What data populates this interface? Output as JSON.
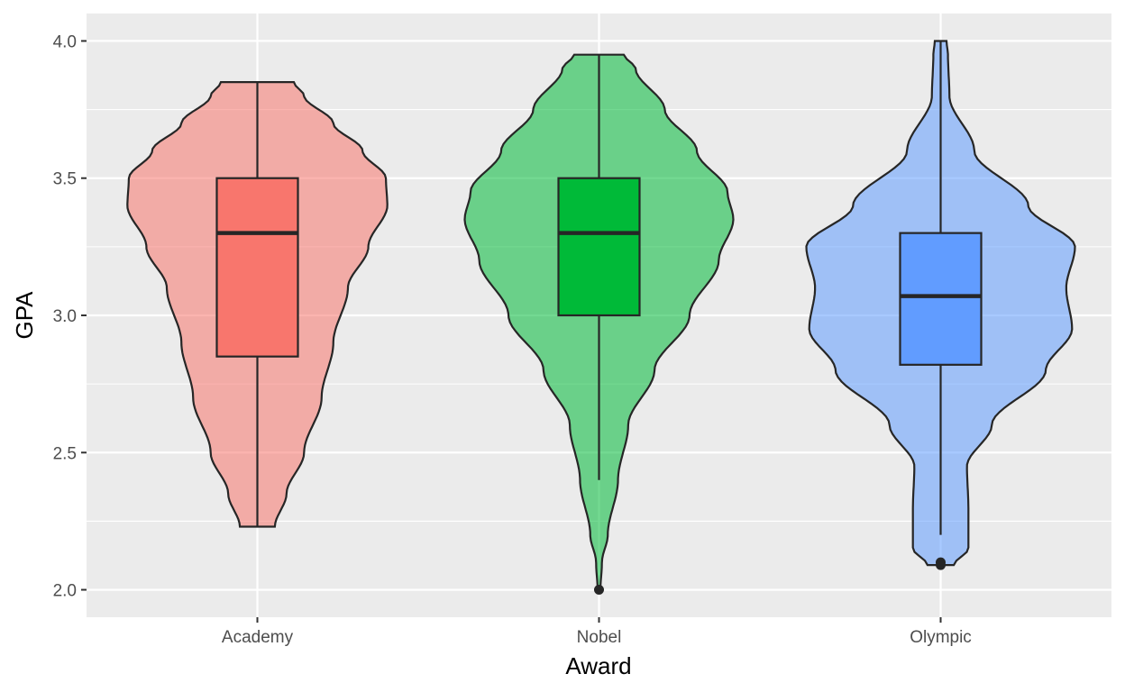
{
  "chart_data": {
    "type": "violin",
    "xlabel": "Award",
    "ylabel": "GPA",
    "ylim": [
      1.9,
      4.1
    ],
    "y_ticks": [
      2.0,
      2.5,
      3.0,
      3.5,
      4.0
    ],
    "y_tick_labels": [
      "2.0",
      "2.5",
      "3.0",
      "3.5",
      "4.0"
    ],
    "grid": true,
    "legend": "none",
    "categories": [
      "Academy",
      "Nobel",
      "Olympic"
    ],
    "series": [
      {
        "category": "Academy",
        "fill_color": "#F8766D",
        "min": 2.23,
        "max": 3.85,
        "box": {
          "lower_whisker": 2.23,
          "q1": 2.85,
          "median": 3.3,
          "q3": 3.5,
          "upper_whisker": 3.85
        },
        "outliers": [],
        "density": [
          [
            2.23,
            0.12
          ],
          [
            2.35,
            0.2
          ],
          [
            2.5,
            0.32
          ],
          [
            2.7,
            0.44
          ],
          [
            2.9,
            0.52
          ],
          [
            3.1,
            0.62
          ],
          [
            3.25,
            0.76
          ],
          [
            3.4,
            0.89
          ],
          [
            3.5,
            0.88
          ],
          [
            3.6,
            0.72
          ],
          [
            3.7,
            0.52
          ],
          [
            3.8,
            0.32
          ],
          [
            3.85,
            0.25
          ]
        ]
      },
      {
        "category": "Nobel",
        "fill_color": "#00BA38",
        "min": 2.0,
        "max": 3.95,
        "box": {
          "lower_whisker": 2.4,
          "q1": 3.0,
          "median": 3.3,
          "q3": 3.5,
          "upper_whisker": 3.95
        },
        "outliers": [
          2.0
        ],
        "density": [
          [
            2.0,
            0.01
          ],
          [
            2.1,
            0.02
          ],
          [
            2.2,
            0.06
          ],
          [
            2.4,
            0.13
          ],
          [
            2.6,
            0.2
          ],
          [
            2.8,
            0.38
          ],
          [
            3.0,
            0.62
          ],
          [
            3.2,
            0.82
          ],
          [
            3.35,
            0.92
          ],
          [
            3.45,
            0.88
          ],
          [
            3.6,
            0.67
          ],
          [
            3.75,
            0.45
          ],
          [
            3.9,
            0.25
          ],
          [
            3.95,
            0.17
          ]
        ]
      },
      {
        "category": "Olympic",
        "fill_color": "#619CFF",
        "min": 2.09,
        "max": 4.0,
        "box": {
          "lower_whisker": 2.2,
          "q1": 2.82,
          "median": 3.07,
          "q3": 3.3,
          "upper_whisker": 4.0
        },
        "outliers": [
          2.09,
          2.1
        ],
        "density": [
          [
            2.09,
            0.09
          ],
          [
            2.15,
            0.19
          ],
          [
            2.3,
            0.19
          ],
          [
            2.45,
            0.18
          ],
          [
            2.6,
            0.35
          ],
          [
            2.8,
            0.72
          ],
          [
            2.95,
            0.9
          ],
          [
            3.1,
            0.86
          ],
          [
            3.25,
            0.92
          ],
          [
            3.4,
            0.6
          ],
          [
            3.6,
            0.23
          ],
          [
            3.8,
            0.06
          ],
          [
            3.95,
            0.05
          ],
          [
            4.0,
            0.04
          ]
        ]
      }
    ]
  }
}
